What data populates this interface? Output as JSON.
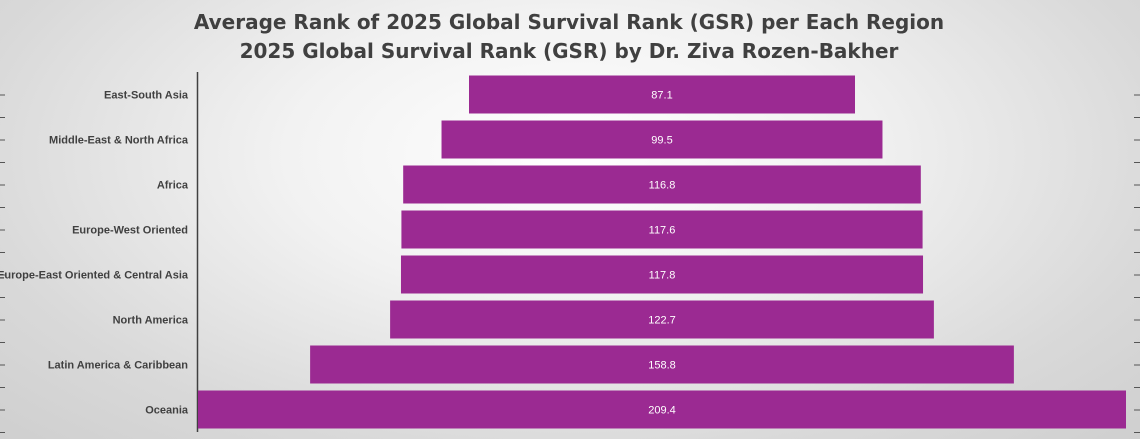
{
  "chart_data": {
    "type": "bar",
    "orientation": "horizontal-centered",
    "title": [
      "Average Rank of 2025 Global Survival Rank (GSR) per Each Region",
      "2025 Global Survival Rank (GSR) by Dr. Ziva Rozen-Bakher"
    ],
    "categories": [
      "East-South Asia",
      "Middle-East & North Africa",
      "Africa",
      "Europe-West Oriented",
      "Europe-East Oriented & Central Asia",
      "North America",
      "Latin America & Caribbean",
      "Oceania"
    ],
    "values": [
      87.1,
      99.5,
      116.8,
      117.6,
      117.8,
      122.7,
      158.8,
      209.4
    ],
    "value_labels": [
      "87.1",
      "99.5",
      "116.8",
      "117.6",
      "117.8",
      "122.7",
      "158.8",
      "209.4"
    ],
    "xlim": [
      0,
      209.4
    ],
    "xlabel": "",
    "ylabel": "",
    "legend": "none",
    "grid": false,
    "bar_color": "#9b2a92"
  }
}
